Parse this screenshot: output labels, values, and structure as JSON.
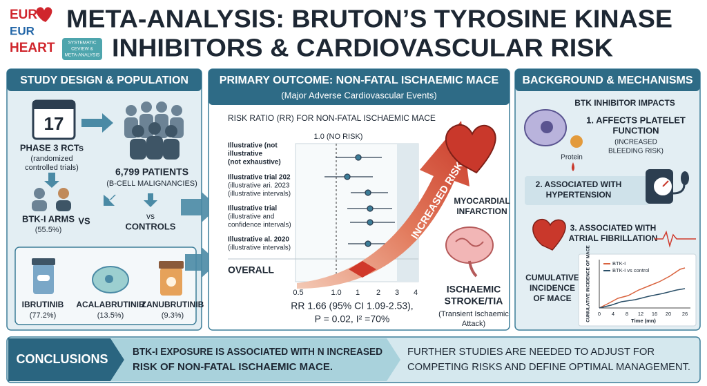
{
  "logo": {
    "line1": "EUR",
    "line2": "EUR",
    "line3": "HEART"
  },
  "badge": [
    "SYSTEMATIC",
    "CEVIEW &",
    "META-ANALYSIS"
  ],
  "title": [
    "META-ANALYSIS: BRUTON’S TYROSINE KINASE",
    "INHIBITORS & CARDIOVASCULAR RISK"
  ],
  "study_design": {
    "header": "STUDY DESIGN & POPULATION",
    "trials_count": "17",
    "phase": "PHASE 3 RCTs",
    "phase_note": [
      "(randomized",
      "controlled trials)"
    ],
    "patients": "6,799 PATIENTS",
    "patients_note": "(B-CELL MALIGNANCIES)",
    "arms": "BTK-I ARMS",
    "arms_pct": "(55.5%)",
    "vs": "VS",
    "controls_vs": "vs",
    "controls": "CONTROLS",
    "drugs": [
      {
        "name": "IBRUTINIB",
        "pct": "(77.2%)"
      },
      {
        "name": "ACALABRUTINIB",
        "pct": "(13.5%)"
      },
      {
        "name": "ZANUBRUTINIB",
        "pct": "(9.3%)"
      }
    ]
  },
  "primary_outcome": {
    "header": "PRIMARY OUTCOME: NON-FATAL ISCHAEMIC MACE",
    "subheader": "(Major Adverse Cardiovascular Events)",
    "plot_title": "RISK RATIO (RR) FOR NON-FATAL ISCHAEMIC MACE",
    "no_risk": "1.0 (NO RISK)",
    "studies": [
      [
        "Illustrative (not",
        "illustrative",
        "(not exhaustive)"
      ],
      [
        "Illustrative trial 202",
        "(illustrative ari. 2023",
        "(illustrative intervals)"
      ],
      [
        "Illustrative trial",
        "(illustrative and",
        "confidence intervals)"
      ],
      [
        "Illustrative al. 2020",
        "(illustrative intervals)"
      ]
    ],
    "overall": "OVERALL",
    "axis_labels": [
      "0.5",
      "1.0",
      "1",
      "2",
      "3",
      "4"
    ],
    "result": [
      "RR 1.66 (95% CI 1.09-2.53),",
      "P = 0.02, I² =70%"
    ],
    "arrow_label": "INCREASED RISK",
    "mi": [
      "MYOCARDIAL",
      "INFARCTION"
    ],
    "stroke": [
      "ISCHAEMIC",
      "STROKE/TIA"
    ],
    "stroke_note": [
      "(Transient Ischaemic",
      "Attack)"
    ]
  },
  "background": {
    "header": "BACKGROUND & MECHANISMS",
    "impacts_title": "BTK INHIBITOR IMPACTS",
    "item1": [
      "1. AFFECTS PLATELET",
      "FUNCTION"
    ],
    "item1_note": [
      "(INCREASED",
      "BLEEDING RISK)"
    ],
    "protein": "Protein",
    "item2": [
      "2. ASSOCIATED WITH",
      "HYPERTENSION"
    ],
    "item3": [
      "3. ASSOCIATED WITH",
      "ATRIAL FIBRILLATION"
    ],
    "cumulative": [
      "CUMULATIVE",
      "INCIDENCE",
      "OF MACE"
    ],
    "mini_chart": {
      "legend": [
        "BTK-I",
        "BTK-I vs control"
      ],
      "y_label": "CUMULATIVE INCIDENCE OF MACE",
      "x_label": "Time (mn)",
      "x_labels": [
        "0",
        "4",
        "8",
        "12",
        "16",
        "20",
        "26"
      ]
    }
  },
  "conclusions": {
    "label": "CONCLUSIONS",
    "finding": [
      "BTK-I EXPOSURE IS ASSOCIATED WITH N INCREASED",
      "RISK OF NON-FATAL ISCHAEMIC MACE."
    ],
    "future": [
      "FURTHER STUDIES ARE NEEDED TO ADJUST FOR",
      "COMPETING RISKS AND DEFINE OPTIMAL MANAGEMENT."
    ]
  }
}
